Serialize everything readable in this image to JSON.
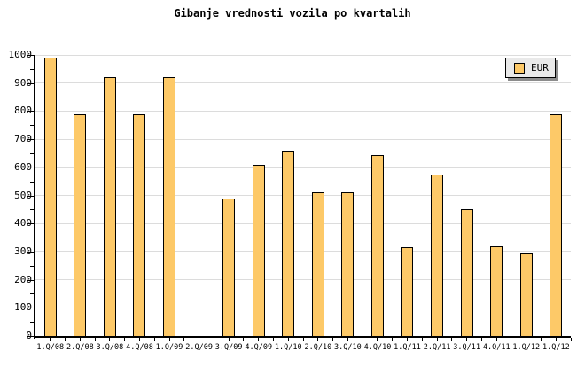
{
  "page": {
    "background": "#ffffff"
  },
  "legend": {
    "label": "EUR",
    "swatch_color": "#fdc968",
    "box_color": "#e9e9e9",
    "shadow_color": "#8c8c8c"
  },
  "chart_data": {
    "type": "bar",
    "title": "Gibanje vrednosti vozila po kvartalih",
    "categories": [
      "1.Q/08",
      "2.Q/08",
      "3.Q/08",
      "4.Q/08",
      "1.Q/09",
      "2.Q/09",
      "3.Q/09",
      "4.Q/09",
      "1.Q/10",
      "2.Q/10",
      "3.Q/10",
      "4.Q/10",
      "1.Q/11",
      "2.Q/11",
      "3.Q/11",
      "4.Q/11",
      "1.Q/12",
      "1.Q/12"
    ],
    "series": [
      {
        "name": "EUR",
        "values": [
          990,
          790,
          920,
          790,
          920,
          null,
          490,
          610,
          660,
          510,
          510,
          645,
          315,
          575,
          450,
          320,
          295,
          790
        ]
      }
    ],
    "xlabel": "",
    "ylabel": "",
    "ylim": [
      0,
      1000
    ],
    "ytick_major": 100,
    "ytick_minor": 50,
    "ytick_labels": [
      "0",
      "100",
      "200",
      "300",
      "400",
      "500",
      "600",
      "700",
      "800",
      "900",
      "1000"
    ],
    "grid": true,
    "grid_color": "#dcdcdc",
    "axis_color": "#000000",
    "bar_color": "#fdc968",
    "bar_border_color": "#000000",
    "legend_position": "top-right",
    "legend_entries": [
      "EUR"
    ]
  }
}
